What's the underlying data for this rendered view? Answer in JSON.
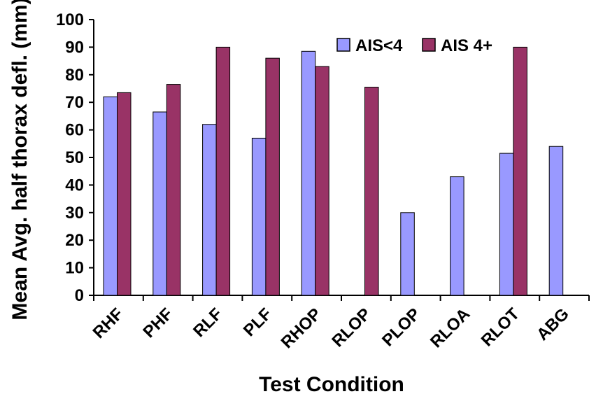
{
  "chart_data": {
    "type": "bar",
    "xlabel": "Test Condition",
    "ylabel": "Mean Avg. half thorax defl. (mm)",
    "ylim": [
      0,
      100
    ],
    "yticks": [
      0,
      10,
      20,
      30,
      40,
      50,
      60,
      70,
      80,
      90,
      100
    ],
    "categories": [
      "RHF",
      "PHF",
      "RLF",
      "PLF",
      "RHOP",
      "RLOP",
      "PLOP",
      "RLOA",
      "RLOT",
      "ABG"
    ],
    "series": [
      {
        "name": "AIS<4",
        "color": "#9999ff",
        "values": [
          72,
          66.5,
          62,
          57,
          88.5,
          null,
          30,
          43,
          51.5,
          54
        ]
      },
      {
        "name": "AIS 4+",
        "color": "#993366",
        "values": [
          73.5,
          76.5,
          90,
          86,
          83,
          75.5,
          null,
          null,
          90,
          null
        ]
      }
    ],
    "legend_position": "top-right",
    "grid": false
  }
}
